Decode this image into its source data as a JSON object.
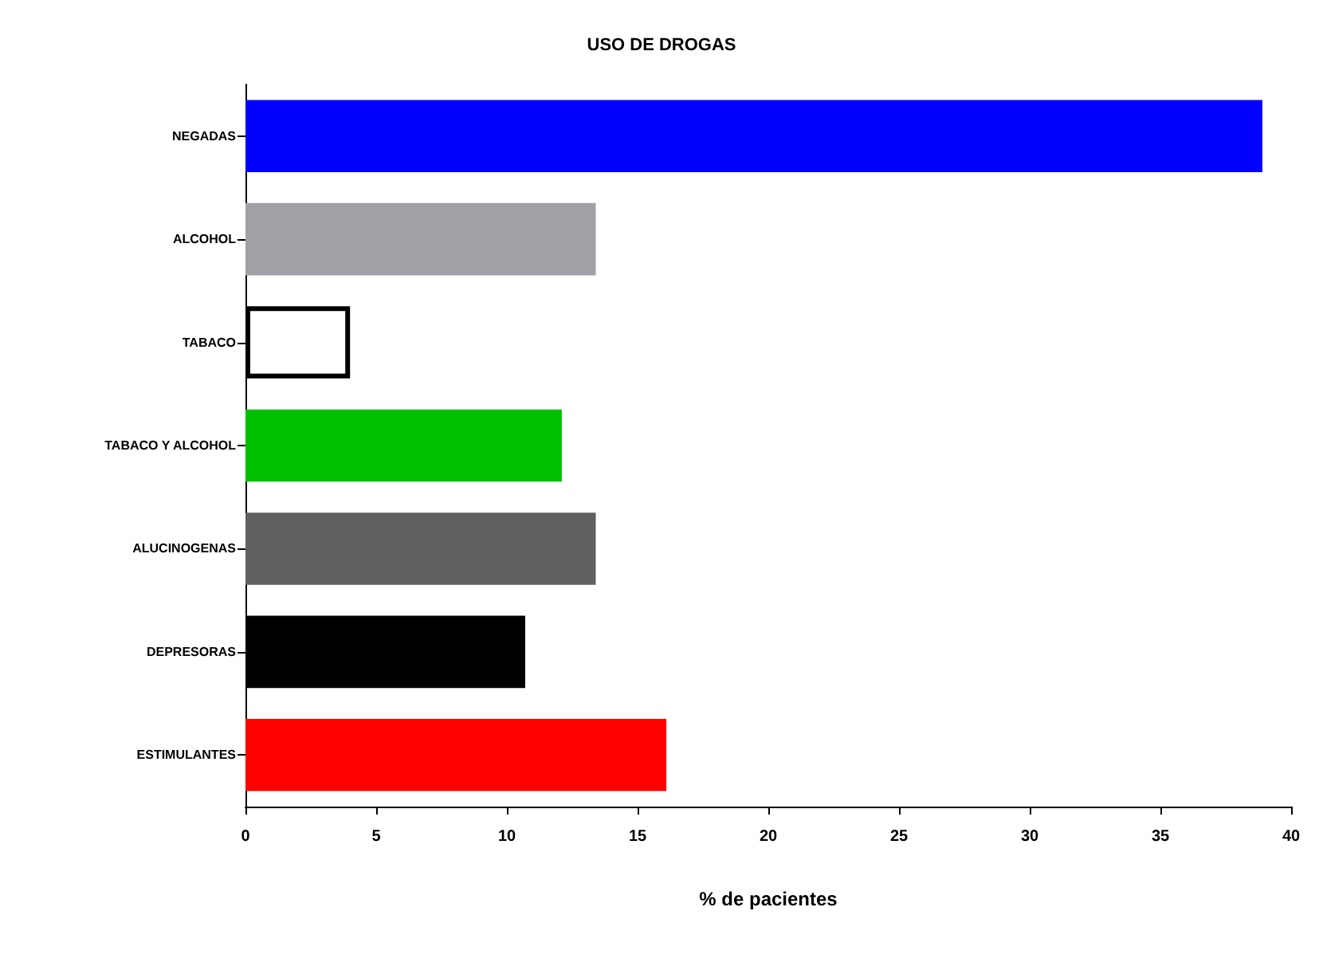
{
  "chart_data": {
    "type": "bar",
    "orientation": "horizontal",
    "title": "USO DE DROGAS",
    "xlabel": "% de pacientes",
    "categories": [
      "NEGADAS",
      "ALCOHOL",
      "TABACO",
      "TABACO Y ALCOHOL",
      "ALUCINOGENAS",
      "DEPRESORAS",
      "ESTIMULANTES"
    ],
    "values": [
      38.9,
      13.4,
      4.0,
      12.1,
      13.4,
      10.7,
      16.1
    ],
    "colors": [
      "#0000ff",
      "#a1a0a5",
      "#ffffff",
      "#00c000",
      "#616161",
      "#000000",
      "#ff0000"
    ],
    "xlim": [
      0,
      40
    ],
    "xticks": [
      0,
      5,
      10,
      15,
      20,
      25,
      30,
      35,
      40
    ],
    "grid": false
  }
}
